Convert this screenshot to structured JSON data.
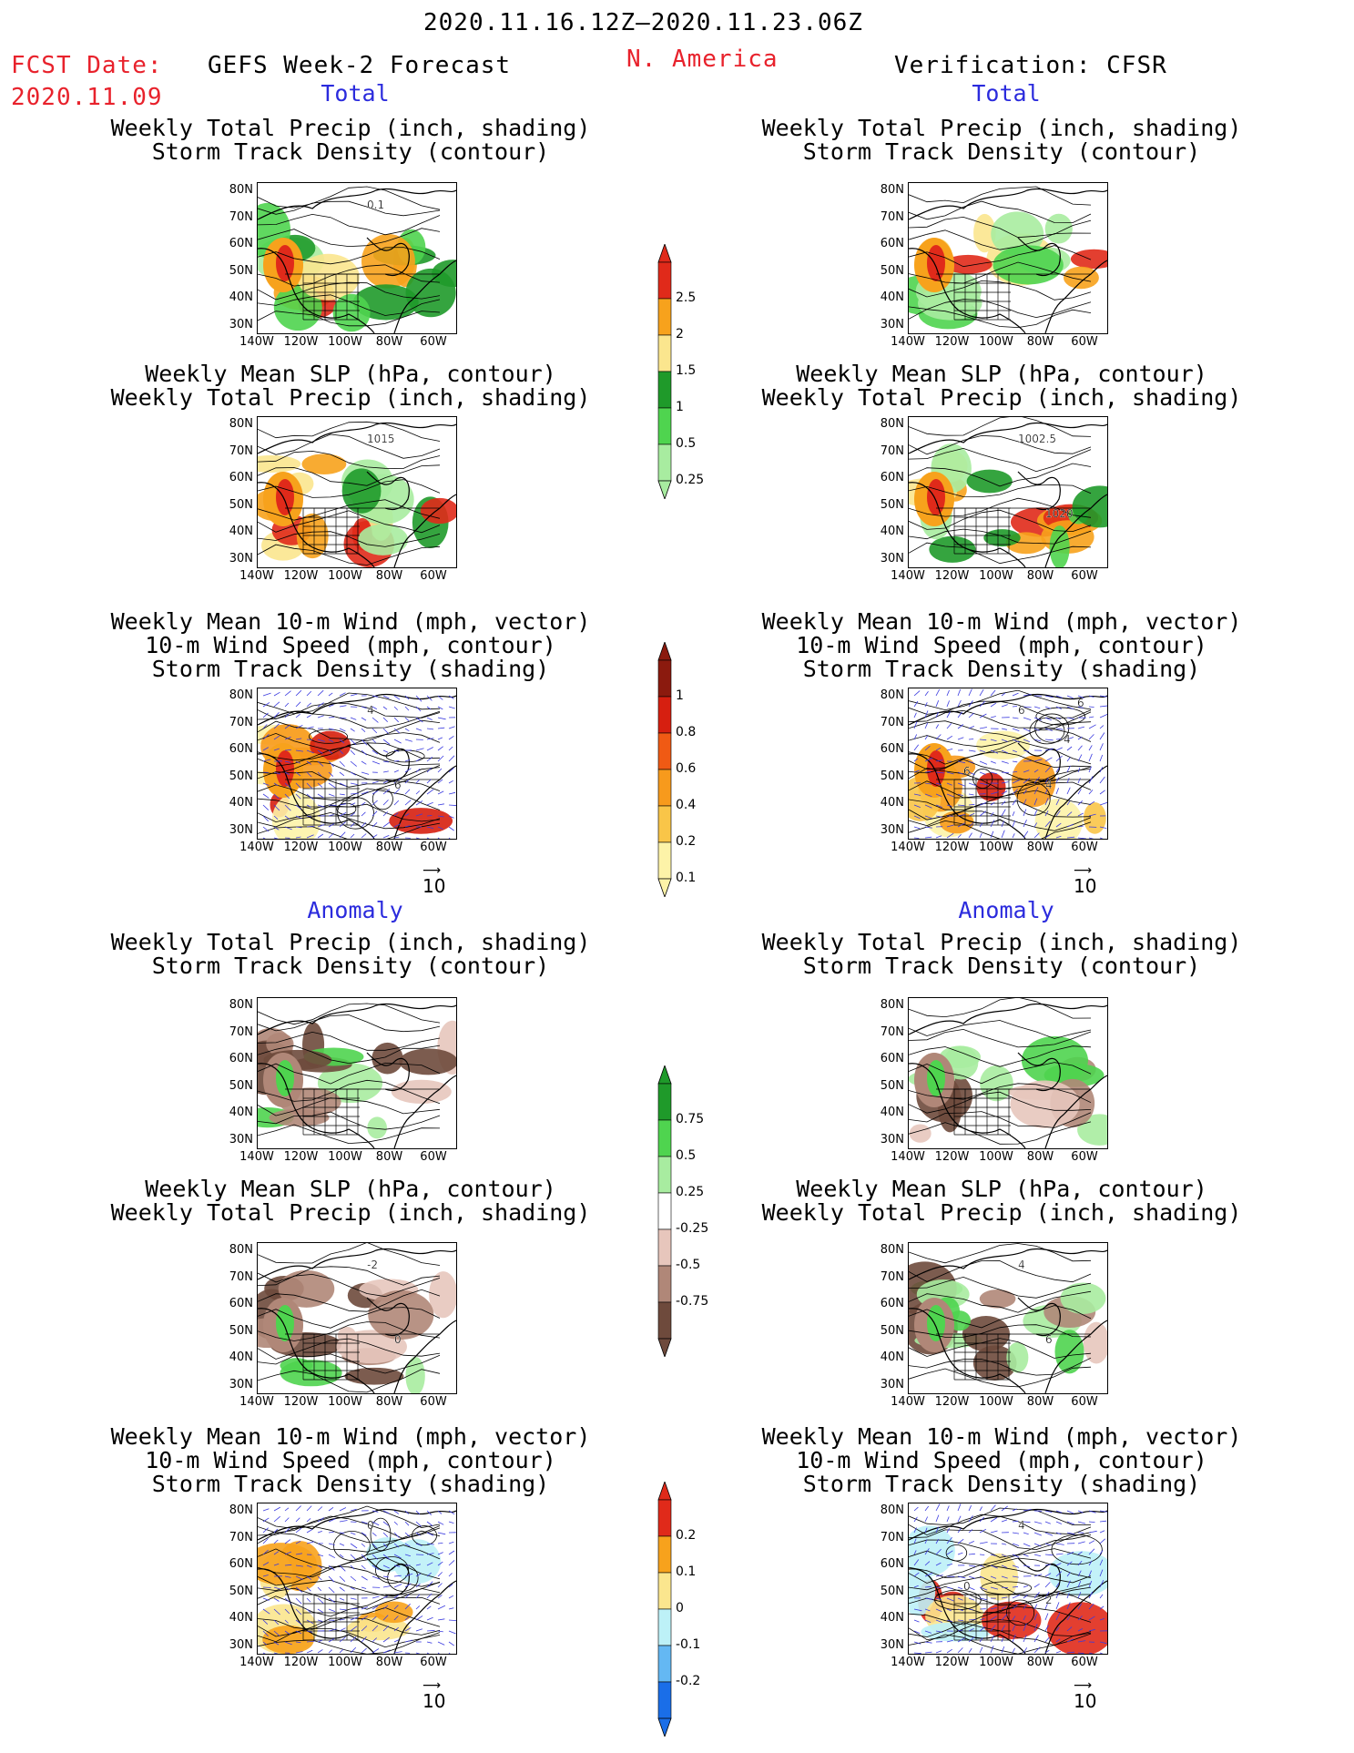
{
  "header": {
    "date_range": "2020.11.16.12Z–2020.11.23.06Z",
    "fcst_label": "FCST Date:",
    "fcst_date": "2020.11.09",
    "model": "GEFS Week-2 Forecast",
    "region": "N. America",
    "verification": "Verification: CFSR"
  },
  "sections": {
    "total": "Total",
    "anomaly": "Anomaly"
  },
  "titles": {
    "precip_storm": [
      "Weekly Total Precip (inch, shading)",
      "Storm Track Density (contour)"
    ],
    "slp_precip": [
      "Weekly Mean SLP (hPa, contour)",
      "Weekly Total Precip (inch, shading)"
    ],
    "wind_storm": [
      "Weekly Mean 10-m Wind (mph, vector)",
      "10-m Wind Speed (mph, contour)",
      "Storm Track Density (shading)"
    ]
  },
  "lat_labels": [
    "80N",
    "70N",
    "60N",
    "50N",
    "40N",
    "30N"
  ],
  "lon_labels": [
    "140W",
    "120W",
    "100W",
    "80W",
    "60W"
  ],
  "vector_ref": "10",
  "contour_labels": {
    "f_total_precip": "0.1",
    "f_total_slp": "1015",
    "f_total_wind": [
      "4",
      "6"
    ],
    "v_total_slp": [
      "1002.5",
      "1020"
    ],
    "v_total_wind": [
      "6",
      "4",
      "6",
      "4",
      "6"
    ],
    "f_anom_slp": [
      "-2",
      "0"
    ],
    "v_anom_slp": [
      "4",
      "6"
    ],
    "f_anom_wind": [
      "0"
    ],
    "v_anom_wind": [
      "4",
      "2",
      "0"
    ]
  },
  "colorbars": {
    "precip_total": {
      "labels": [
        "2.5",
        "2",
        "1.5",
        "1",
        "0.5",
        "0.25"
      ],
      "colors": [
        "#e02a1a",
        "#f7a21c",
        "#fbe68e",
        "#1f9a2a",
        "#4fd44f",
        "#a8eca0"
      ]
    },
    "storm_total": {
      "labels": [
        "1",
        "0.8",
        "0.6",
        "0.4",
        "0.2",
        "0.1"
      ],
      "colors": [
        "#8b1a0e",
        "#d61f10",
        "#f05a14",
        "#f79a1c",
        "#f9c548",
        "#fdf3a8"
      ]
    },
    "precip_anom": {
      "labels": [
        "0.75",
        "0.5",
        "0.25",
        "-0.25",
        "-0.5",
        "-0.75"
      ],
      "colors": [
        "#1f9a2a",
        "#4fd44f",
        "#a8eca0",
        "#ffffff",
        "#e7c6bc",
        "#b08778",
        "#6e4a3c"
      ]
    },
    "storm_anom": {
      "labels": [
        "0.2",
        "0.1",
        "0",
        "-0.1",
        "-0.2"
      ],
      "colors": [
        "#e02a1a",
        "#f7a21c",
        "#fbe68e",
        "#bdf1f7",
        "#64b8f3",
        "#1a6ee8"
      ]
    }
  }
}
